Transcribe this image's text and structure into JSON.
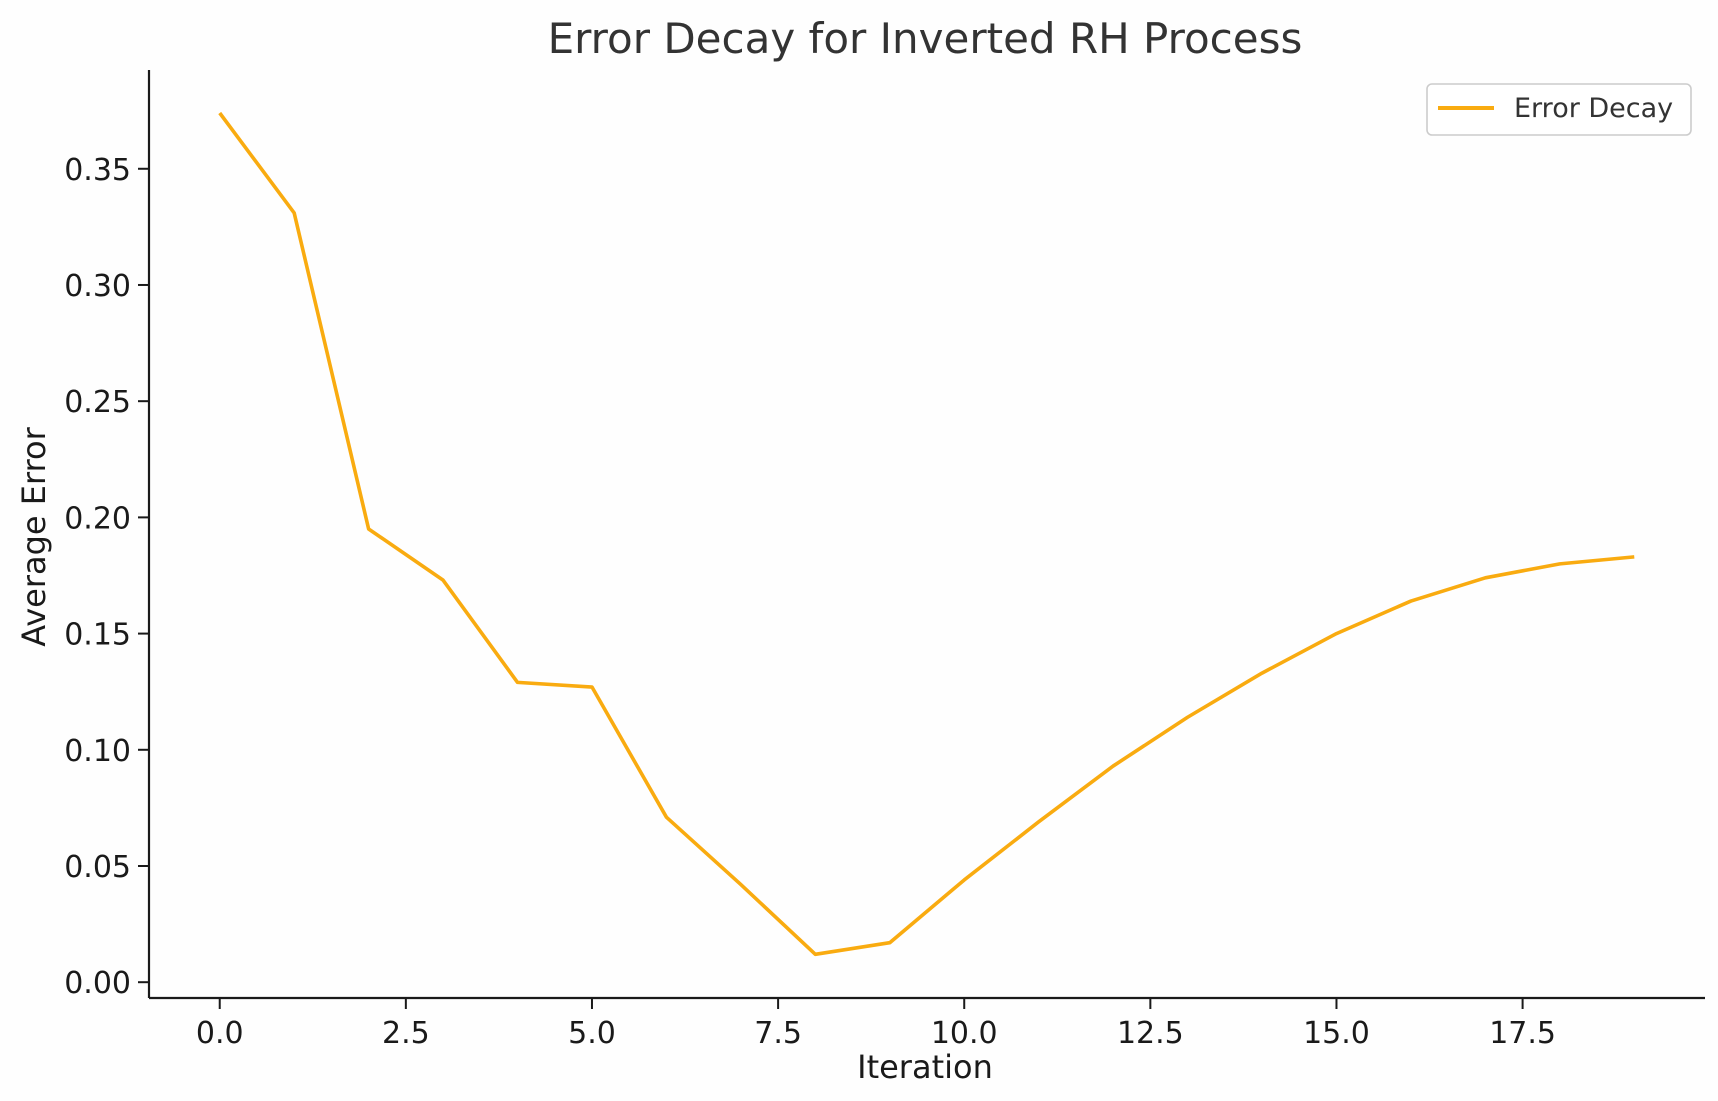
{
  "chart_data": {
    "type": "line",
    "title": "Error Decay for Inverted RH Process",
    "xlabel": "Iteration",
    "ylabel": "Average Error",
    "xlim": [
      -0.95,
      19.95
    ],
    "ylim": [
      -0.0068,
      0.3925
    ],
    "x_ticks": [
      0.0,
      2.5,
      5.0,
      7.5,
      10.0,
      12.5,
      15.0,
      17.5
    ],
    "x_tick_labels": [
      "0.0",
      "2.5",
      "5.0",
      "7.5",
      "10.0",
      "12.5",
      "15.0",
      "17.5"
    ],
    "y_ticks": [
      0.0,
      0.05,
      0.1,
      0.15,
      0.2,
      0.25,
      0.3,
      0.35
    ],
    "y_tick_labels": [
      "0.00",
      "0.05",
      "0.10",
      "0.15",
      "0.20",
      "0.25",
      "0.30",
      "0.35"
    ],
    "grid": false,
    "legend_position": "top-right",
    "series": [
      {
        "name": "Error Decay",
        "color": "#f9ab10",
        "x": [
          0,
          1,
          2,
          3,
          4,
          5,
          6,
          7,
          8,
          9,
          10,
          11,
          12,
          13,
          14,
          15,
          16,
          17,
          18,
          19
        ],
        "values": [
          0.374,
          0.331,
          0.195,
          0.173,
          0.129,
          0.127,
          0.071,
          0.042,
          0.012,
          0.017,
          0.044,
          0.069,
          0.093,
          0.114,
          0.133,
          0.15,
          0.164,
          0.174,
          0.18,
          0.183
        ]
      }
    ]
  }
}
